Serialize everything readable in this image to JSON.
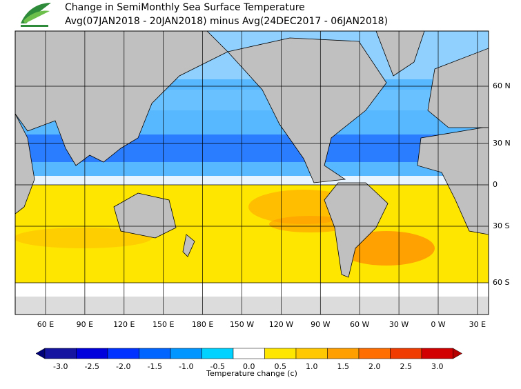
{
  "header": {
    "title": "Change in SemiMonthly Sea Surface Temperature",
    "subtitle": "Avg(07JAN2018 - 20JAN2018) minus Avg(24DEC2017 - 06JAN2018)"
  },
  "map": {
    "lon_labels": [
      "60 E",
      "90 E",
      "120 E",
      "150 E",
      "180 E",
      "150 W",
      "120 W",
      "90 W",
      "60 W",
      "30 W",
      "0 W",
      "30 E"
    ],
    "lat_labels": [
      "60 N",
      "30 N",
      "0",
      "30 S",
      "60 S"
    ]
  },
  "colorbar": {
    "label": "Temperature change (c)",
    "ticks": [
      {
        "value": -3,
        "label": "-3.0"
      },
      -2.5,
      {
        "value": -2,
        "label": "-2.0"
      },
      -1.5,
      {
        "value": -1,
        "label": "-1.0"
      },
      -0.5,
      {
        "value": 0,
        "label": "0.0"
      },
      0.5,
      {
        "value": 1,
        "label": "1.0"
      },
      1.5,
      {
        "value": 2,
        "label": "2.0"
      },
      2.5,
      {
        "value": 3,
        "label": "3.0"
      }
    ],
    "colors": [
      "#1414a0",
      "#0000dc",
      "#0032ff",
      "#0064ff",
      "#0096ff",
      "#00d2ff",
      "#ffffff",
      "#ffe600",
      "#ffc800",
      "#ffa000",
      "#ff6e00",
      "#f03c00",
      "#d20000"
    ],
    "under_color": "#000078",
    "over_color": "#b40000"
  }
}
